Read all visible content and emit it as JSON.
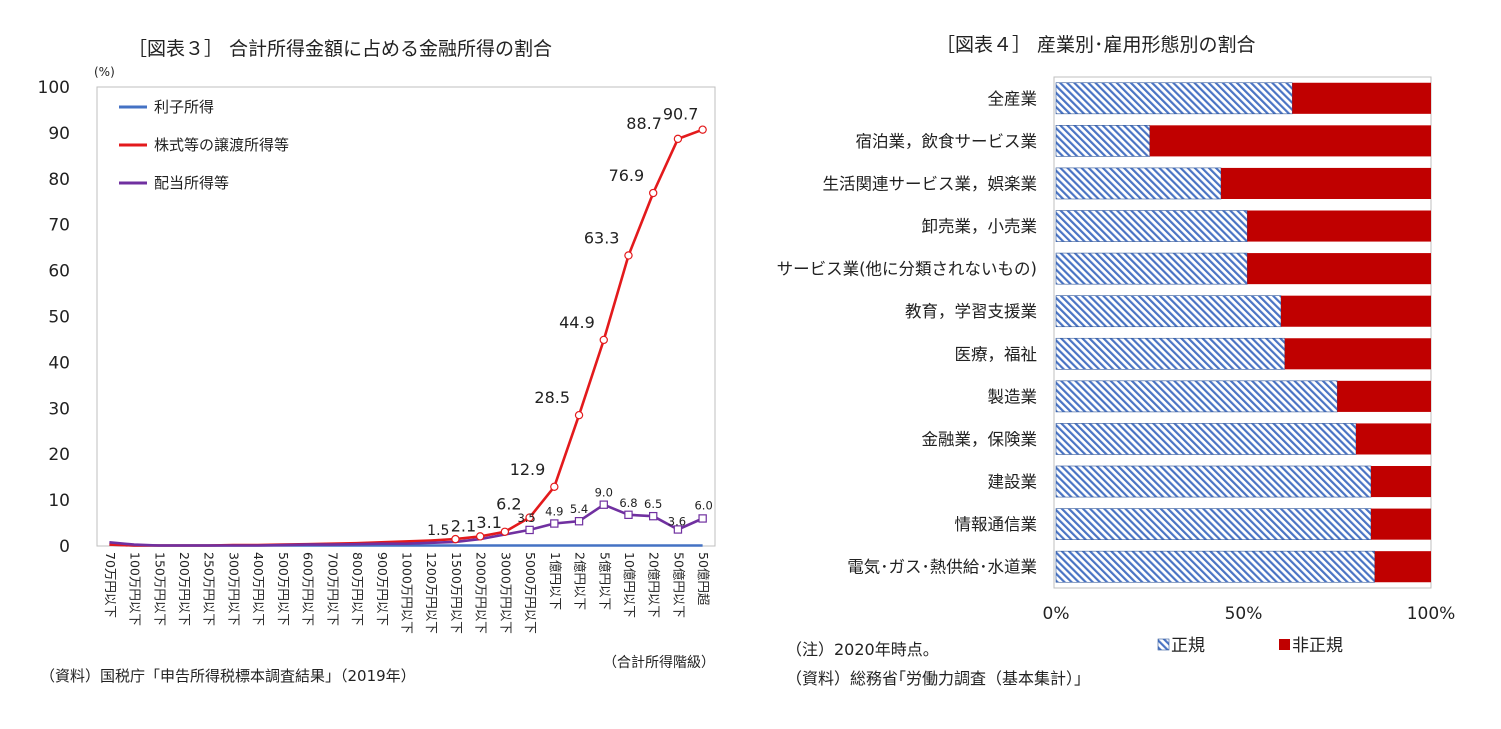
{
  "chart_data": [
    {
      "type": "line",
      "title": "［図表３］ 合計所得金額に占める金融所得の割合",
      "ylabel": "(%)",
      "xlabel": "（合計所得階級）",
      "ylim": [
        0,
        100
      ],
      "yticks": [
        "0",
        "10",
        "20",
        "30",
        "40",
        "50",
        "60",
        "70",
        "80",
        "90",
        "100"
      ],
      "categories": [
        "70万円以下",
        "100万円以下",
        "150万円以下",
        "200万円以下",
        "250万円以下",
        "300万円以下",
        "400万円以下",
        "500万円以下",
        "600万円以下",
        "700万円以下",
        "800万円以下",
        "900万円以下",
        "1000万円以下",
        "1200万円以下",
        "1500万円以下",
        "2000万円以下",
        "3000万円以下",
        "5000万円以下",
        "1億円以下",
        "2億円以下",
        "5億円以下",
        "10億円以下",
        "20億円以下",
        "50億円以下",
        "50億円超"
      ],
      "legend_position": "top-left",
      "series": [
        {
          "name": "利子所得",
          "color": "#4472C4",
          "values": [
            0.3,
            0.1,
            0.1,
            0.1,
            0.1,
            0.1,
            0.1,
            0.1,
            0.1,
            0.1,
            0.1,
            0.1,
            0.1,
            0.1,
            0.1,
            0.1,
            0.1,
            0.1,
            0.1,
            0.1,
            0.1,
            0.1,
            0.1,
            0.1,
            0.1
          ]
        },
        {
          "name": "株式等の譲渡所得等",
          "color": "#E31A1C",
          "values": [
            0.3,
            0.1,
            0.1,
            0.1,
            0.1,
            0.2,
            0.2,
            0.3,
            0.4,
            0.5,
            0.6,
            0.8,
            1.0,
            1.2,
            1.5,
            2.1,
            3.1,
            6.2,
            12.9,
            28.5,
            44.9,
            63.3,
            76.9,
            88.7,
            90.7
          ],
          "labels": [
            "",
            "",
            "",
            "",
            "",
            "",
            "",
            "",
            "",
            "",
            "",
            "",
            "",
            "",
            "1.5",
            "2.1",
            "3.1",
            "6.2",
            "12.9",
            "28.5",
            "44.9",
            "63.3",
            "76.9",
            "88.7",
            "90.7"
          ]
        },
        {
          "name": "配当所得等",
          "color": "#7030A0",
          "values": [
            0.8,
            0.3,
            0.1,
            0.1,
            0.1,
            0.1,
            0.1,
            0.2,
            0.3,
            0.3,
            0.4,
            0.5,
            0.5,
            0.7,
            0.9,
            1.5,
            2.5,
            3.5,
            4.9,
            5.4,
            9.0,
            6.8,
            6.5,
            3.6,
            6.0
          ],
          "labels": [
            "",
            "",
            "",
            "",
            "",
            "",
            "",
            "",
            "",
            "",
            "",
            "",
            "",
            "",
            "",
            "",
            "",
            "3.5",
            "4.9",
            "5.4",
            "9.0",
            "6.8",
            "6.5",
            "3.6",
            "6.0"
          ]
        }
      ],
      "source": "（資料）国税庁「申告所得税標本調査結果」（2019年）"
    },
    {
      "type": "bar",
      "orientation": "horizontal",
      "stacked": true,
      "title": "［図表４］ 産業別･雇用形態別の割合",
      "categories": [
        "全産業",
        "宿泊業，飲食サービス業",
        "生活関連サービス業，娯楽業",
        "卸売業，小売業",
        "サービス業(他に分類されないもの)",
        "教育，学習支援業",
        "医療，福祉",
        "製造業",
        "金融業，保険業",
        "建設業",
        "情報通信業",
        "電気･ガス･熱供給･水道業"
      ],
      "xlim": [
        0,
        100
      ],
      "xticks": [
        "0%",
        "50%",
        "100%"
      ],
      "legend_position": "bottom",
      "series": [
        {
          "name": "正規",
          "pattern": "diagonal-hatch",
          "color": "#4472C4",
          "values": [
            63,
            25,
            44,
            51,
            51,
            60,
            61,
            75,
            80,
            84,
            84,
            85
          ]
        },
        {
          "name": "非正規",
          "color": "#C00000",
          "values": [
            37,
            75,
            56,
            49,
            49,
            40,
            39,
            25,
            20,
            16,
            16,
            15
          ]
        }
      ],
      "note": "（注）2020年時点。",
      "source": "（資料）総務省｢労働力調査（基本集計）｣"
    }
  ]
}
